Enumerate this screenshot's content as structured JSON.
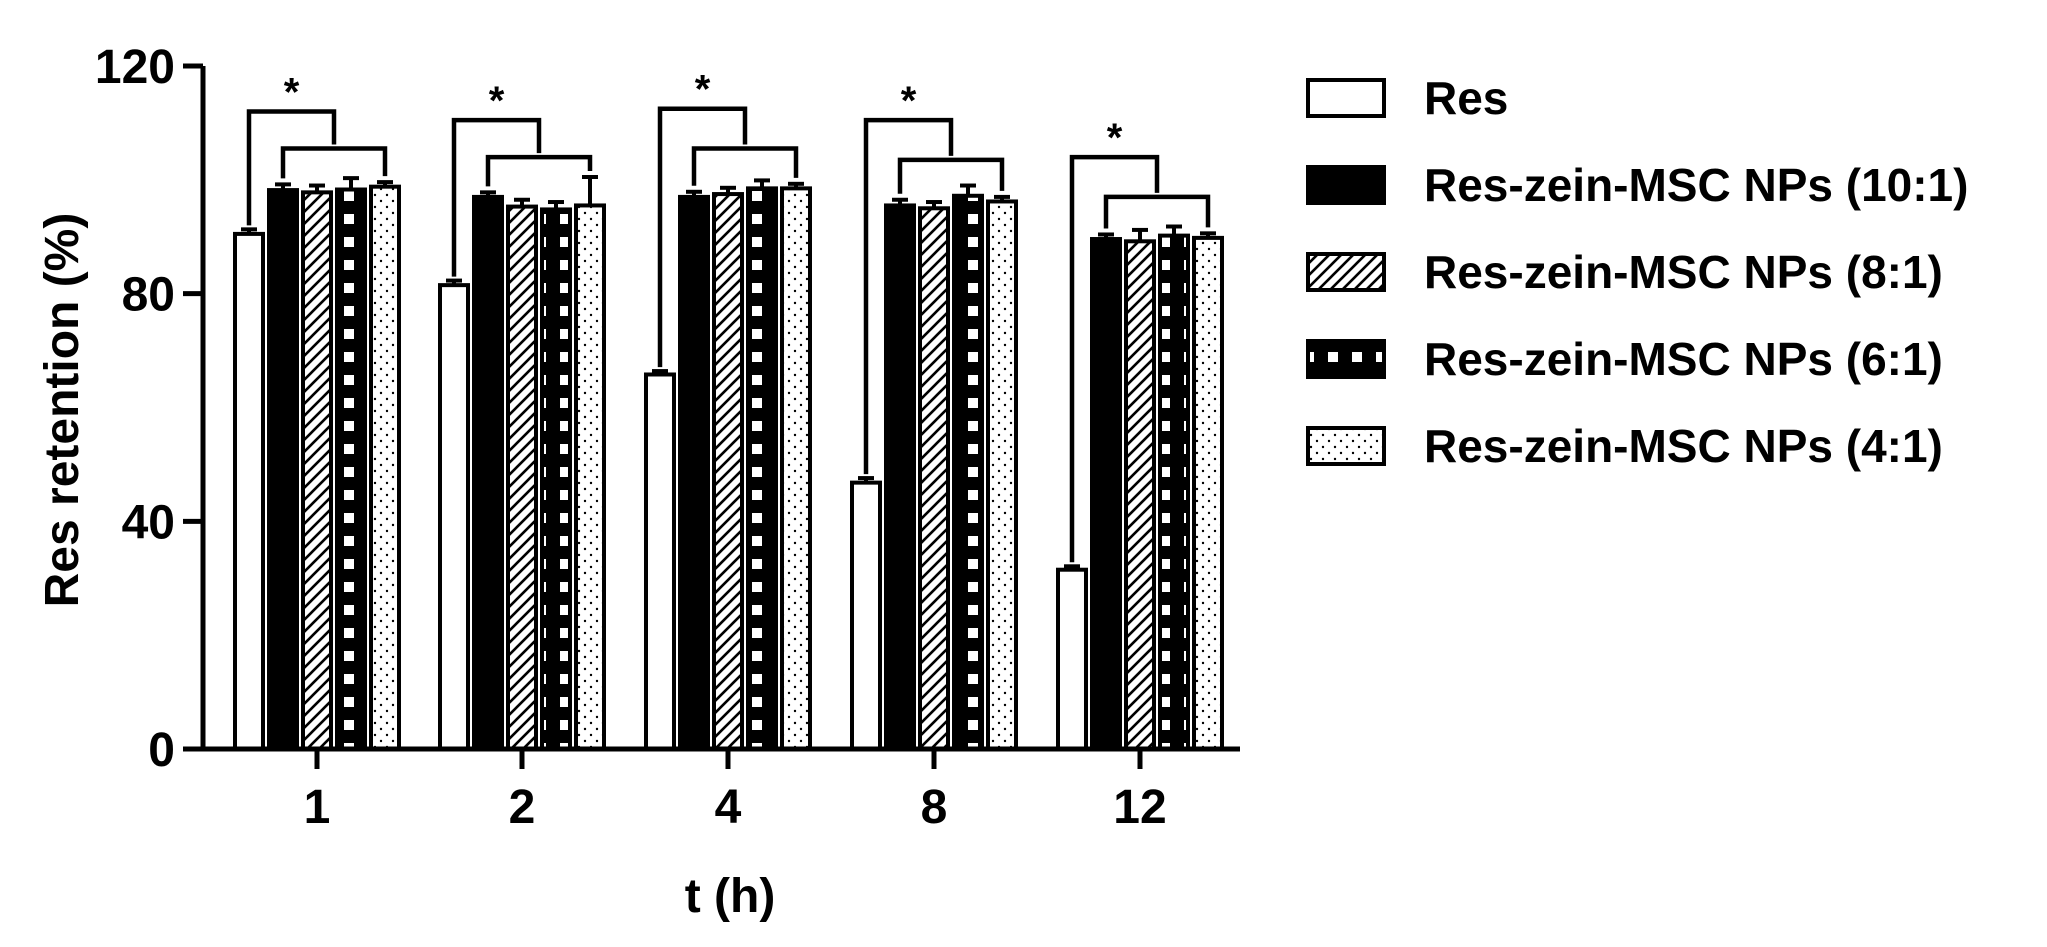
{
  "chart_data": {
    "type": "bar",
    "xlabel": "t (h)",
    "ylabel": "Res retention (%)",
    "ylim": [
      0,
      120
    ],
    "yticks": [
      0,
      40,
      80,
      120
    ],
    "categories": [
      "1",
      "2",
      "4",
      "8",
      "12"
    ],
    "series": [
      {
        "name": "Res",
        "pattern": "open",
        "values": [
          90.5,
          81.5,
          65.8,
          46.8,
          31.5
        ],
        "errors": [
          0.8,
          0.8,
          0.6,
          0.8,
          0.6
        ]
      },
      {
        "name": "Res-zein-MSC NPs (10:1)",
        "pattern": "solid",
        "values": [
          98.2,
          97.0,
          97.0,
          95.5,
          89.6
        ],
        "errors": [
          1.0,
          0.8,
          0.9,
          1.0,
          0.8
        ]
      },
      {
        "name": "Res-zein-MSC NPs (8:1)",
        "pattern": "hatched",
        "values": [
          97.8,
          95.3,
          97.5,
          95.0,
          89.2
        ],
        "errors": [
          1.2,
          1.2,
          1.1,
          1.1,
          2.0
        ]
      },
      {
        "name": "Res-zein-MSC NPs (6:1)",
        "pattern": "checkered",
        "values": [
          98.3,
          94.8,
          98.5,
          97.2,
          90.2
        ],
        "errors": [
          2.0,
          1.3,
          1.4,
          1.8,
          1.6
        ]
      },
      {
        "name": "Res-zein-MSC NPs (4:1)",
        "pattern": "dotted",
        "values": [
          98.8,
          95.5,
          98.5,
          96.2,
          89.8
        ],
        "errors": [
          0.8,
          5.0,
          0.8,
          0.8,
          0.8
        ]
      }
    ],
    "significance": [
      {
        "category": "1",
        "label": "*",
        "outer_level": 112,
        "inner_level": 105.5
      },
      {
        "category": "2",
        "label": "*",
        "outer_level": 110.5,
        "inner_level": 104
      },
      {
        "category": "4",
        "label": "*",
        "outer_level": 112.5,
        "inner_level": 105.5
      },
      {
        "category": "8",
        "label": "*",
        "outer_level": 110.5,
        "inner_level": 103.5
      },
      {
        "category": "12",
        "label": "*",
        "outer_level": 104,
        "inner_level": 97
      }
    ],
    "legend_position": "right",
    "grid": false,
    "colors": {
      "stroke": "#000000",
      "fill_open": "#ffffff",
      "fill_solid": "#000000"
    }
  }
}
